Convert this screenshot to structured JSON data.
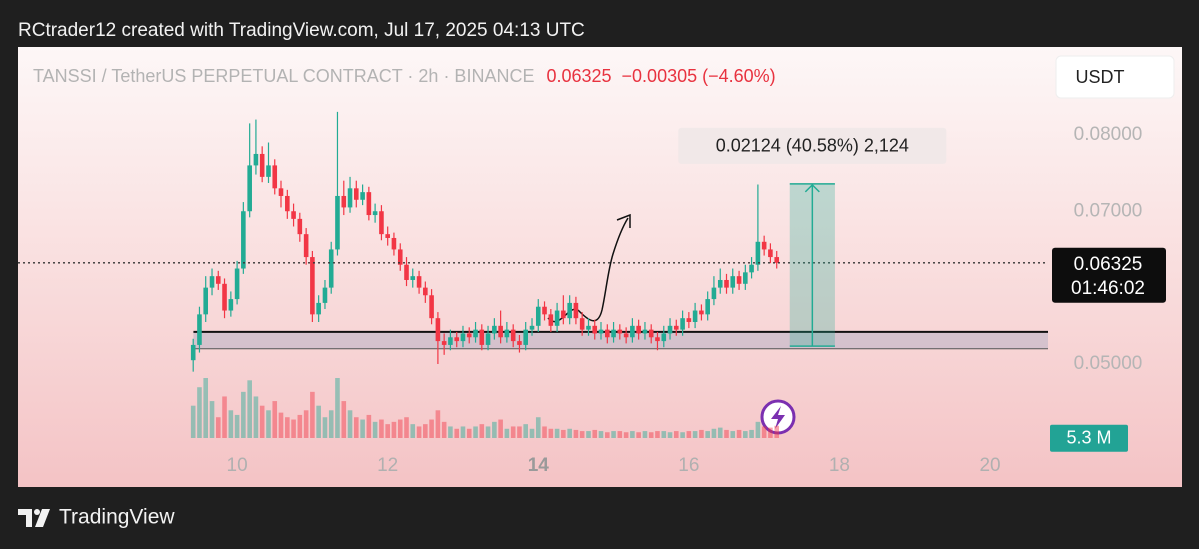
{
  "header": {
    "title": "RCtrader12 created with TradingView.com, Jul 17, 2025 04:13 UTC"
  },
  "footer": {
    "brand": "TradingView"
  },
  "chart_data": {
    "type": "candlestick",
    "symbol": "TANSSI / TetherUS PERPETUAL CONTRACT · 2h · BINANCE",
    "last_price": 0.06325,
    "change": "−0.00305 (−4.60%)",
    "countdown": "01:46:02",
    "currency": "USDT",
    "up_color": "#22ab94",
    "down_color": "#f23645",
    "grid": false,
    "xlim": [
      7.09,
      20.77
    ],
    "xticks": [
      10,
      12,
      14,
      16,
      18,
      20
    ],
    "ylim": [
      0.0339,
      0.0915
    ],
    "yticks": [
      {
        "value": 0.05,
        "label": "0.05000"
      },
      {
        "value": 0.07,
        "label": "0.07000"
      },
      {
        "value": 0.08,
        "label": "0.08000"
      }
    ],
    "x": [
      9.417,
      9.5,
      9.583,
      9.667,
      9.75,
      9.833,
      9.917,
      10,
      10.083,
      10.167,
      10.25,
      10.333,
      10.417,
      10.5,
      10.583,
      10.667,
      10.75,
      10.833,
      10.917,
      11,
      11.083,
      11.167,
      11.25,
      11.333,
      11.417,
      11.5,
      11.583,
      11.667,
      11.75,
      11.833,
      11.917,
      12,
      12.083,
      12.167,
      12.25,
      12.333,
      12.417,
      12.5,
      12.583,
      12.667,
      12.75,
      12.833,
      12.917,
      13,
      13.083,
      13.167,
      13.25,
      13.333,
      13.417,
      13.5,
      13.583,
      13.667,
      13.75,
      13.833,
      13.917,
      14,
      14.083,
      14.167,
      14.25,
      14.333,
      14.417,
      14.5,
      14.583,
      14.667,
      14.75,
      14.833,
      14.917,
      15,
      15.083,
      15.167,
      15.25,
      15.333,
      15.417,
      15.5,
      15.583,
      15.667,
      15.75,
      15.833,
      15.917,
      16,
      16.083,
      16.167,
      16.25,
      16.333,
      16.417,
      16.5,
      16.583,
      16.667,
      16.75,
      16.833,
      16.917,
      17,
      17.083,
      17.167
    ],
    "open": [
      0.0505,
      0.0525,
      0.0565,
      0.06,
      0.0615,
      0.0605,
      0.057,
      0.0585,
      0.0625,
      0.07,
      0.076,
      0.0775,
      0.0745,
      0.076,
      0.073,
      0.072,
      0.07,
      0.069,
      0.067,
      0.064,
      0.0565,
      0.058,
      0.06,
      0.065,
      0.072,
      0.0705,
      0.073,
      0.0715,
      0.0725,
      0.0695,
      0.07,
      0.067,
      0.0665,
      0.065,
      0.063,
      0.061,
      0.0615,
      0.06,
      0.059,
      0.056,
      0.053,
      0.0525,
      0.0535,
      0.053,
      0.054,
      0.0535,
      0.0545,
      0.0525,
      0.054,
      0.055,
      0.0535,
      0.0545,
      0.053,
      0.0525,
      0.0545,
      0.055,
      0.0575,
      0.0565,
      0.055,
      0.057,
      0.056,
      0.058,
      0.056,
      0.0545,
      0.055,
      0.054,
      0.0545,
      0.0535,
      0.0545,
      0.054,
      0.0535,
      0.055,
      0.054,
      0.0545,
      0.0535,
      0.053,
      0.054,
      0.055,
      0.0545,
      0.056,
      0.0555,
      0.057,
      0.0565,
      0.0585,
      0.06,
      0.061,
      0.06,
      0.0615,
      0.0605,
      0.062,
      0.063,
      0.066,
      0.065,
      0.064
    ],
    "high": [
      0.0533,
      0.0575,
      0.0615,
      0.0625,
      0.0622,
      0.0612,
      0.0595,
      0.0635,
      0.0712,
      0.0815,
      0.082,
      0.0785,
      0.079,
      0.0768,
      0.074,
      0.0728,
      0.071,
      0.0698,
      0.0678,
      0.0648,
      0.059,
      0.061,
      0.066,
      0.083,
      0.074,
      0.0745,
      0.074,
      0.0735,
      0.0732,
      0.071,
      0.0708,
      0.068,
      0.0672,
      0.0658,
      0.064,
      0.0625,
      0.0622,
      0.0608,
      0.0598,
      0.0568,
      0.054,
      0.0545,
      0.0542,
      0.055,
      0.0548,
      0.0555,
      0.0552,
      0.055,
      0.056,
      0.057,
      0.0555,
      0.0552,
      0.0538,
      0.0555,
      0.056,
      0.0585,
      0.0582,
      0.0572,
      0.058,
      0.059,
      0.059,
      0.0588,
      0.0568,
      0.056,
      0.0558,
      0.0555,
      0.0552,
      0.0555,
      0.0552,
      0.0548,
      0.056,
      0.0558,
      0.0555,
      0.0552,
      0.0542,
      0.055,
      0.056,
      0.0558,
      0.057,
      0.0568,
      0.058,
      0.0578,
      0.0595,
      0.0615,
      0.0625,
      0.0618,
      0.0625,
      0.0622,
      0.063,
      0.064,
      0.0735,
      0.0668,
      0.0658,
      0.0648
    ],
    "low": [
      0.049,
      0.0515,
      0.0555,
      0.059,
      0.0597,
      0.056,
      0.0562,
      0.0578,
      0.0618,
      0.0692,
      0.0748,
      0.0738,
      0.0737,
      0.0722,
      0.0705,
      0.069,
      0.068,
      0.066,
      0.063,
      0.0555,
      0.0555,
      0.0572,
      0.0592,
      0.0642,
      0.0695,
      0.0698,
      0.0705,
      0.0708,
      0.0688,
      0.0685,
      0.0662,
      0.0655,
      0.0642,
      0.0622,
      0.0602,
      0.06,
      0.0592,
      0.058,
      0.0552,
      0.05,
      0.0512,
      0.0518,
      0.0522,
      0.0522,
      0.0527,
      0.0528,
      0.0518,
      0.0518,
      0.0532,
      0.0527,
      0.0528,
      0.0522,
      0.0515,
      0.0518,
      0.0537,
      0.0542,
      0.0557,
      0.0542,
      0.0542,
      0.0552,
      0.0552,
      0.0552,
      0.0537,
      0.0537,
      0.0532,
      0.0532,
      0.0527,
      0.0528,
      0.0532,
      0.0527,
      0.0528,
      0.0532,
      0.0532,
      0.0527,
      0.0518,
      0.0522,
      0.0532,
      0.0537,
      0.0537,
      0.0547,
      0.0547,
      0.0557,
      0.0557,
      0.0577,
      0.0592,
      0.0592,
      0.0592,
      0.0597,
      0.0597,
      0.0612,
      0.0622,
      0.0642,
      0.0632,
      0.0625
    ],
    "close": [
      0.0525,
      0.0565,
      0.06,
      0.0615,
      0.0605,
      0.057,
      0.0585,
      0.0625,
      0.07,
      0.076,
      0.0775,
      0.0745,
      0.076,
      0.073,
      0.072,
      0.07,
      0.069,
      0.067,
      0.064,
      0.0565,
      0.058,
      0.06,
      0.065,
      0.072,
      0.0705,
      0.073,
      0.0715,
      0.0725,
      0.0695,
      0.07,
      0.067,
      0.0665,
      0.065,
      0.063,
      0.061,
      0.0615,
      0.06,
      0.059,
      0.056,
      0.053,
      0.0525,
      0.0535,
      0.053,
      0.054,
      0.0535,
      0.0545,
      0.0525,
      0.054,
      0.055,
      0.0535,
      0.0545,
      0.053,
      0.0525,
      0.0545,
      0.055,
      0.0575,
      0.0565,
      0.055,
      0.057,
      0.056,
      0.058,
      0.056,
      0.0545,
      0.055,
      0.054,
      0.0545,
      0.0535,
      0.0545,
      0.054,
      0.0535,
      0.055,
      0.054,
      0.0545,
      0.0535,
      0.053,
      0.054,
      0.055,
      0.0545,
      0.056,
      0.0555,
      0.057,
      0.0565,
      0.0585,
      0.06,
      0.061,
      0.06,
      0.0615,
      0.0605,
      0.062,
      0.063,
      0.066,
      0.065,
      0.064,
      0.06325
    ],
    "volume_ylim": [
      0,
      26
    ],
    "volume": [
      14,
      22,
      26,
      16,
      9,
      18,
      12,
      10,
      20,
      25,
      18,
      14,
      12,
      16,
      11,
      9,
      8,
      10,
      12,
      20,
      14,
      9,
      12,
      26,
      16,
      12,
      9,
      8,
      10,
      7,
      8,
      6,
      7,
      8,
      9,
      6,
      5,
      6,
      8,
      12,
      7,
      5,
      4,
      5,
      4,
      5,
      6,
      5,
      7,
      8,
      4,
      5,
      5,
      6,
      4,
      9,
      5,
      4,
      4,
      3.5,
      4,
      3.5,
      3,
      3,
      3.5,
      3,
      2.5,
      3,
      3,
      2.5,
      3,
      2.5,
      3,
      2.5,
      3,
      3,
      2.5,
      3,
      2.5,
      3,
      3,
      3.5,
      3,
      4,
      4.5,
      3.5,
      3,
      3.5,
      3,
      3.5,
      7,
      5,
      4.5,
      5.3
    ],
    "volume_last_label": "5.3 M",
    "support_zone": {
      "x_start": 9.42,
      "from": 0.052,
      "to": 0.0542
    },
    "measure": {
      "x": [
        17.34,
        17.94
      ],
      "from": 0.05234,
      "to": 0.07358,
      "label": "0.02124 (40.58%) 2,124"
    }
  }
}
